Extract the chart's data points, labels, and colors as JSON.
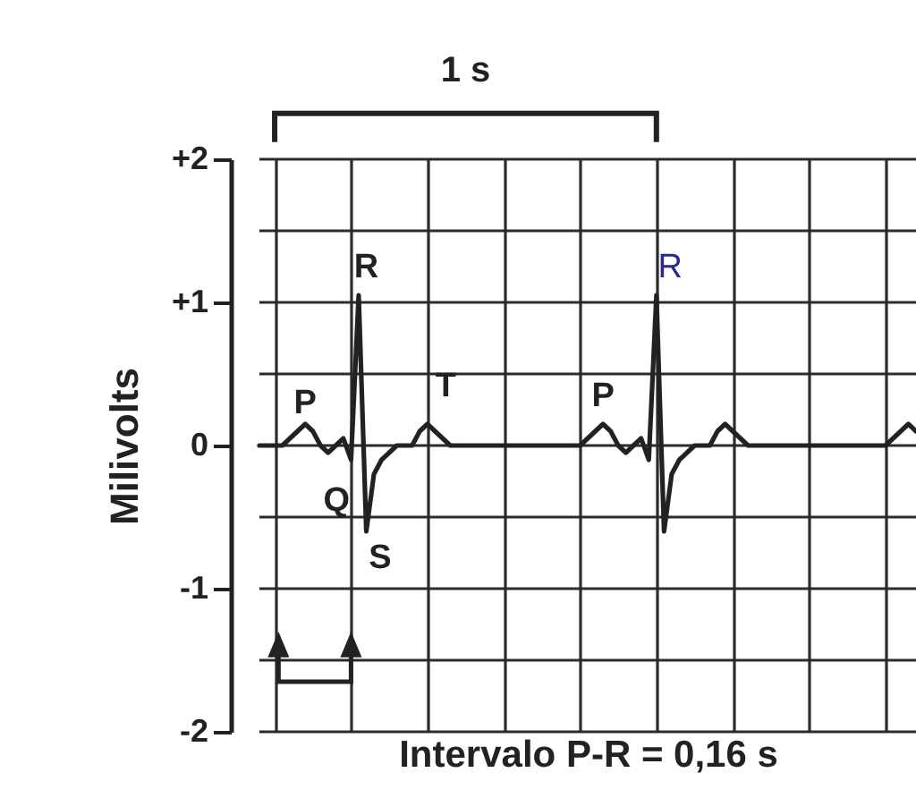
{
  "chart_data": {
    "type": "line",
    "xlabel": "Intervalo P-R = 0,16 s",
    "ylabel": "Milivolts",
    "categories": [
      null,
      null,
      null,
      null,
      null,
      null,
      null,
      null,
      null,
      null,
      null,
      null,
      null,
      null,
      null,
      null,
      null,
      null,
      null,
      null,
      null,
      null,
      null,
      null,
      null,
      null,
      null,
      null,
      null,
      null,
      null,
      null,
      null,
      null,
      null,
      null,
      null,
      null,
      null,
      null,
      null,
      null,
      null,
      null,
      null,
      null,
      null,
      null,
      null,
      null,
      null,
      null,
      null,
      null,
      null,
      null,
      null,
      null,
      null,
      null,
      null,
      null,
      null,
      null,
      null,
      null,
      null,
      null,
      null,
      null,
      null,
      null,
      null,
      null,
      null,
      null,
      null,
      null,
      null,
      null,
      null,
      null,
      null,
      null,
      null,
      null,
      null
    ],
    "series": [
      {
        "color": "#222222",
        "values": [
          0,
          0,
          0,
          0,
          0.05,
          0.1,
          0.15,
          0.1,
          0,
          -0.05,
          0,
          0.05,
          -0.1,
          1.05,
          -0.6,
          -0.2,
          -0.1,
          -0.05,
          0,
          0,
          0,
          0.1,
          0.15,
          0.1,
          0.05,
          0,
          0,
          0,
          0,
          0,
          0,
          0,
          0,
          0,
          0,
          0,
          0,
          0,
          0,
          0,
          0,
          0,
          0,
          0.05,
          0.1,
          0.15,
          0.1,
          0,
          -0.05,
          0,
          0.05,
          -0.1,
          1.05,
          -0.6,
          -0.2,
          -0.1,
          -0.05,
          0,
          0,
          0,
          0.1,
          0.15,
          0.1,
          0.05,
          0,
          0,
          0,
          0,
          0,
          0,
          0,
          0,
          0,
          0,
          0,
          0,
          0,
          0,
          0,
          0,
          0,
          0,
          0,
          0.05,
          0.1,
          0.15,
          0.1
        ]
      }
    ],
    "ylim": [
      -2,
      2
    ],
    "yticks": [
      {
        "value": 2,
        "label": "+2"
      },
      {
        "value": 1.5,
        "label": null
      },
      {
        "value": 1,
        "label": "+1"
      },
      {
        "value": 0.5,
        "label": null
      },
      0,
      {
        "value": -0.5,
        "label": null
      },
      {
        "value": -1,
        "label": "-1"
      },
      {
        "value": -1.5,
        "label": null
      },
      {
        "value": -2,
        "label": "-2"
      }
    ],
    "grid": true,
    "marker": "none",
    "line_style": "solid",
    "annotations": [
      "1 s",
      "P",
      "Q",
      "R",
      "S",
      "T",
      "P",
      "R"
    ]
  }
}
